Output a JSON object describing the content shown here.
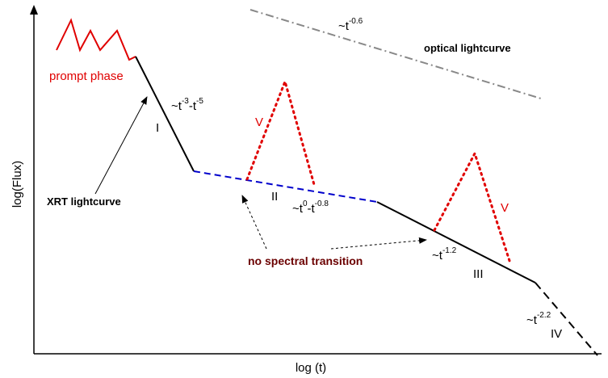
{
  "axes": {
    "x_label": "log (t)",
    "y_label": "log(Flux)"
  },
  "labels": {
    "prompt_phase": "prompt phase",
    "optical_lightcurve": "optical lightcurve",
    "xrt_lightcurve": "XRT  lightcurve",
    "no_spectral_transition": "no spectral transition"
  },
  "segments": {
    "I": "I",
    "II": "II",
    "III": "III",
    "IV": "IV",
    "V_left": "V",
    "V_right": "V"
  },
  "slopes": {
    "optical": {
      "base": "~t",
      "exp": "-0.6"
    },
    "seg1": {
      "base": "~t",
      "exp1": "-3",
      "mid": "-t",
      "exp2": "-5"
    },
    "seg2": {
      "base": "~t",
      "exp1": "0",
      "mid": "-t",
      "exp2": "-0.8"
    },
    "seg3": {
      "base": "~t",
      "exp": "-1.2"
    },
    "seg4": {
      "base": "~t",
      "exp": "-2.2"
    }
  },
  "colors": {
    "prompt": "#e00000",
    "flare": "#e00000",
    "plateau": "#0000cc",
    "optical": "#888888",
    "solid": "#000000",
    "maroon_text": "#6b0000"
  }
}
